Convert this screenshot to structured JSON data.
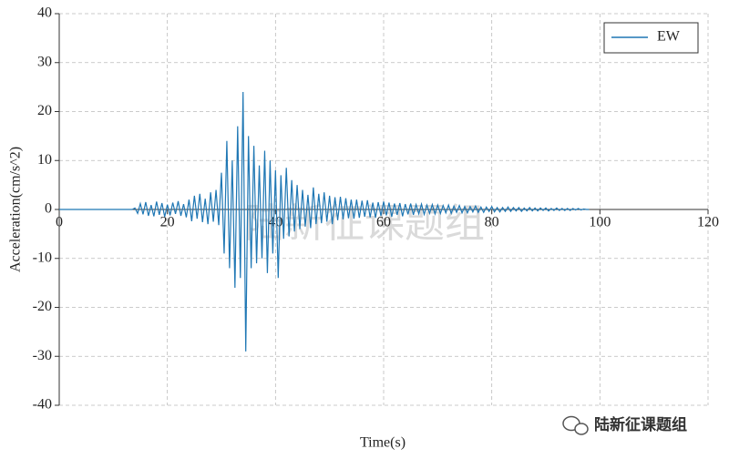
{
  "chart_data": {
    "type": "line",
    "xlabel": "Time(s)",
    "ylabel": "Acceleration(cm/s^2)",
    "watermark": "陆新征课题组",
    "credit": "陆新征课题组",
    "xlim": [
      0,
      120
    ],
    "xticks": [
      0,
      20,
      40,
      60,
      80,
      100,
      120
    ],
    "ylim": [
      -40,
      40
    ],
    "yticks": [
      -40,
      -30,
      -20,
      -10,
      0,
      10,
      20,
      30,
      40
    ],
    "grid": true,
    "legend": "upper right",
    "x": [
      0,
      13.5,
      14,
      14.5,
      15,
      15.5,
      16,
      16.5,
      17,
      17.5,
      18,
      18.5,
      19,
      19.5,
      20,
      20.5,
      21,
      21.5,
      22,
      22.5,
      23,
      23.5,
      24,
      24.5,
      25,
      25.5,
      26,
      26.5,
      27,
      27.5,
      28,
      28.5,
      29,
      29.5,
      30,
      30.5,
      31,
      31.5,
      32,
      32.5,
      33,
      33.5,
      34,
      34.5,
      35,
      35.5,
      36,
      36.5,
      37,
      37.5,
      38,
      38.5,
      39,
      39.5,
      40,
      40.5,
      41,
      41.5,
      42,
      42.5,
      43,
      43.5,
      44,
      44.5,
      45,
      45.5,
      46,
      46.5,
      47,
      47.5,
      48,
      48.5,
      49,
      49.5,
      50,
      50.5,
      51,
      51.5,
      52,
      52.5,
      53,
      53.5,
      54,
      54.5,
      55,
      55.5,
      56,
      56.5,
      57,
      57.5,
      58,
      58.5,
      59,
      59.5,
      60,
      60.5,
      61,
      61.5,
      62,
      62.5,
      63,
      63.5,
      64,
      64.5,
      65,
      65.5,
      66,
      66.5,
      67,
      67.5,
      68,
      68.5,
      69,
      69.5,
      70,
      70.5,
      71,
      71.5,
      72,
      72.5,
      73,
      73.5,
      74,
      74.5,
      75,
      75.5,
      76,
      76.5,
      77,
      77.5,
      78,
      78.5,
      79,
      79.5,
      80,
      80.5,
      81,
      81.5,
      82,
      82.5,
      83,
      83.5,
      84,
      84.5,
      85,
      85.5,
      86,
      86.5,
      87,
      87.5,
      88,
      88.5,
      89,
      89.5,
      90,
      90.5,
      91,
      91.5,
      92,
      92.5,
      93,
      93.5,
      94,
      94.5,
      95,
      95.5,
      96,
      96.5,
      97,
      97.5,
      98
    ],
    "series": [
      {
        "name": "EW",
        "color": "#1f77b4",
        "values": [
          0,
          0,
          0.3,
          -0.8,
          1.2,
          -1.0,
          1.5,
          -1.3,
          0.9,
          -1.4,
          1.6,
          -1.1,
          1.3,
          -1.5,
          1.0,
          -1.2,
          1.4,
          -0.9,
          1.7,
          -1.3,
          1.1,
          -1.6,
          2.0,
          -2.4,
          2.8,
          -1.9,
          3.2,
          -2.6,
          2.2,
          -3.0,
          3.5,
          -2.5,
          4.0,
          -3.2,
          7.5,
          -9.0,
          14.0,
          -12.0,
          10.0,
          -16.0,
          17.0,
          -14.0,
          24.0,
          -29.0,
          15.0,
          -12.0,
          13.0,
          -11.0,
          9.0,
          -10.0,
          12.0,
          -13.0,
          10.0,
          -9.0,
          8.0,
          -14.0,
          7.0,
          -6.0,
          8.5,
          -5.5,
          6.0,
          -4.5,
          5.0,
          -4.0,
          4.0,
          -3.5,
          3.0,
          -3.8,
          4.5,
          -3.0,
          3.2,
          -2.8,
          3.5,
          -2.5,
          2.8,
          -3.0,
          2.5,
          -2.2,
          2.6,
          -2.0,
          2.3,
          -1.8,
          2.0,
          -1.9,
          2.0,
          -1.7,
          1.8,
          -1.5,
          1.9,
          -1.6,
          1.4,
          -1.7,
          1.5,
          -1.3,
          1.6,
          -1.2,
          1.4,
          -1.5,
          1.2,
          -1.1,
          1.3,
          -1.4,
          1.1,
          -1.0,
          1.2,
          -1.1,
          1.0,
          -0.9,
          1.1,
          -1.0,
          0.9,
          -0.8,
          1.0,
          -0.9,
          0.9,
          -0.8,
          0.8,
          -0.7,
          0.9,
          -0.8,
          0.7,
          -0.6,
          0.8,
          -0.7,
          0.6,
          -0.7,
          0.6,
          -0.5,
          0.7,
          -0.6,
          0.5,
          -0.6,
          0.5,
          -0.4,
          0.6,
          -0.5,
          0.4,
          -0.5,
          0.4,
          -0.4,
          0.5,
          -0.4,
          0.4,
          -0.3,
          0.4,
          -0.4,
          0.3,
          -0.3,
          0.4,
          -0.3,
          0.3,
          -0.3,
          0.3,
          -0.2,
          0.3,
          -0.3,
          0.2,
          -0.2,
          0.3,
          -0.2,
          0.2,
          -0.2,
          0.2,
          -0.2,
          0.2,
          -0.1,
          0.2,
          -0.1,
          0.1,
          0.0,
          0
        ]
      }
    ]
  }
}
